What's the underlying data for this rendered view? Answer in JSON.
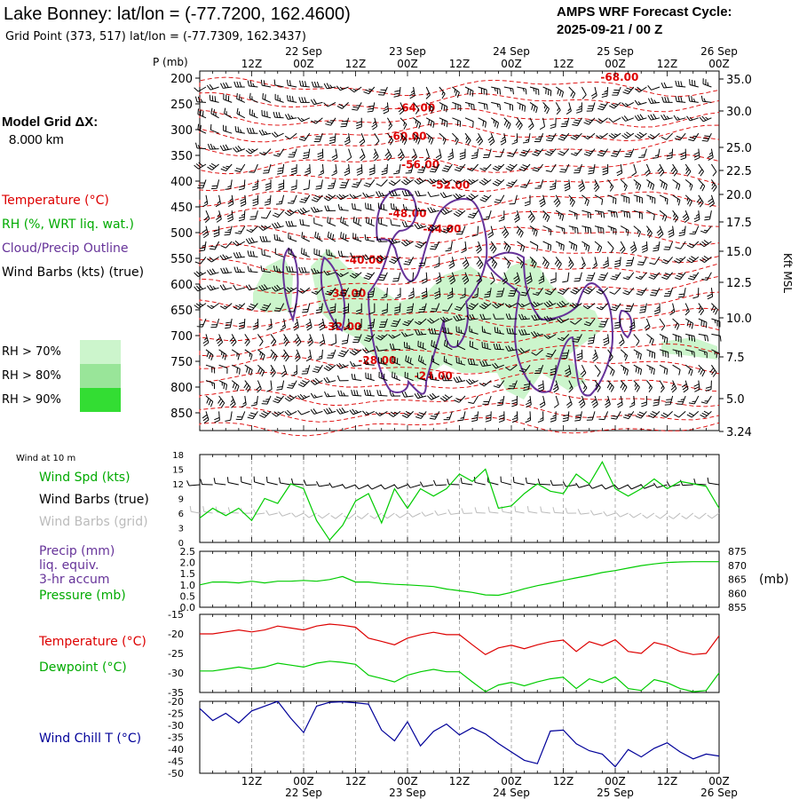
{
  "header": {
    "station_title": "Lake Bonney:  lat/lon = (-77.7200, 162.4600)",
    "grid_point": "Grid Point (373, 517) lat/lon = (-77.7309, 162.3437)",
    "cycle_line1": "AMPS WRF Forecast Cycle:",
    "cycle_line2": "2025-09-21 / 00  Z",
    "model_grid_line1": "Model Grid ΔX:",
    "model_grid_line2": "8.000 km"
  },
  "colors": {
    "temperature": "#dd0000",
    "rh_green": "#00aa00",
    "cloud_outline": "#663399",
    "wind_chill": "#000099",
    "rh70": "#ccf5cc",
    "rh80": "#99e599",
    "rh90": "#33dd33",
    "grid": "#999999"
  },
  "time_axis": {
    "hour_labels": [
      "12Z",
      "00Z",
      "12Z",
      "00Z",
      "12Z",
      "00Z",
      "12Z",
      "00Z",
      "12Z",
      "00Z"
    ],
    "date_labels": [
      "22 Sep",
      "23 Sep",
      "24 Sep",
      "25 Sep",
      "26 Sep"
    ]
  },
  "chart_data": [
    {
      "type": "contour",
      "name": "cross-section",
      "x_range_hours": [
        0,
        120
      ],
      "p_axis_label": "P (mb)",
      "p_ticks": [
        200,
        250,
        300,
        350,
        400,
        450,
        500,
        550,
        600,
        650,
        700,
        750,
        800,
        850
      ],
      "height_axis_label": "Kft MSL",
      "height_ticks": [
        "35.0",
        "30.0",
        "25.0",
        "22.5",
        "20.0",
        "17.5",
        "15.0",
        "12.5",
        "10.0",
        "7.5",
        "5.0",
        "3.24"
      ],
      "legend_labels": {
        "temperature": "Temperature (°C)",
        "rh": "RH (%, WRT liq. wat.)",
        "cloud": "Cloud/Precip Outline",
        "barbs": "Wind Barbs (kts) (true)"
      },
      "rh_legend": [
        "RH > 70%",
        "RH > 80%",
        "RH > 90%"
      ],
      "isotherm_labels": [
        {
          "label": "-68.00",
          "t": 97,
          "p": 205
        },
        {
          "label": "-64.00",
          "t": 50,
          "p": 265
        },
        {
          "label": "-60.00",
          "t": 48,
          "p": 320
        },
        {
          "label": "-56.00",
          "t": 51,
          "p": 375
        },
        {
          "label": "-52.00",
          "t": 58,
          "p": 415
        },
        {
          "label": "-48.00",
          "t": 48,
          "p": 470
        },
        {
          "label": "-44.00",
          "t": 56,
          "p": 500
        },
        {
          "label": "-40.00",
          "t": 38,
          "p": 560
        },
        {
          "label": "-36.00",
          "t": 34,
          "p": 625
        },
        {
          "label": "-32.00",
          "t": 33,
          "p": 690
        },
        {
          "label": "-28.00",
          "t": 41,
          "p": 755
        },
        {
          "label": "-24.00",
          "t": 54,
          "p": 785
        }
      ]
    },
    {
      "type": "line",
      "name": "wind-at-10m",
      "panel_title": "Wind at 10 m",
      "labels": [
        "Wind Spd (kts)",
        "Wind Barbs (true)",
        "Wind Barbs (grid)"
      ],
      "ylim": [
        0,
        18
      ],
      "y_ticks": [
        0,
        3,
        6,
        9,
        12,
        15,
        18
      ],
      "x_hours": [
        0,
        3,
        6,
        9,
        12,
        15,
        18,
        21,
        24,
        27,
        30,
        33,
        36,
        39,
        42,
        45,
        48,
        51,
        54,
        57,
        60,
        63,
        66,
        69,
        72,
        75,
        78,
        81,
        84,
        87,
        90,
        93,
        96,
        99,
        102,
        105,
        108,
        111,
        114,
        117,
        120
      ],
      "wind_speed": [
        5,
        7,
        5.5,
        7,
        4.5,
        9,
        8,
        12,
        11,
        4.5,
        0.5,
        3.5,
        8.5,
        10,
        4,
        11,
        7,
        11,
        9.5,
        11,
        14,
        12.5,
        15,
        7,
        7.5,
        10,
        12,
        10.5,
        10,
        14,
        12,
        16.5,
        11,
        9.5,
        11,
        13,
        11,
        12.5,
        12,
        11.5,
        7
      ]
    },
    {
      "type": "line",
      "name": "precip-pressure",
      "labels": [
        "Precip (mm)",
        "liq. equiv.",
        "3-hr accum",
        "Pressure (mb)"
      ],
      "left_ylim": [
        0,
        2.5
      ],
      "left_ticks": [
        "0.0",
        "0.5",
        "1.0",
        "1.5",
        "2.0",
        "2.5"
      ],
      "right_ylim": [
        855,
        875
      ],
      "right_ticks": [
        "855",
        "860",
        "865",
        "870",
        "875"
      ],
      "right_unit": "(mb)",
      "x_hours": [
        0,
        3,
        6,
        9,
        12,
        15,
        18,
        21,
        24,
        27,
        30,
        33,
        36,
        39,
        42,
        45,
        48,
        51,
        54,
        57,
        60,
        63,
        66,
        69,
        72,
        75,
        78,
        81,
        84,
        87,
        90,
        93,
        96,
        99,
        102,
        105,
        108,
        111,
        114,
        117,
        120
      ],
      "pressure": [
        863,
        864,
        864,
        863.7,
        864.3,
        863.7,
        864.3,
        864.3,
        864.6,
        864.3,
        864.9,
        866,
        864,
        864,
        863.5,
        863.2,
        863,
        862.7,
        862.4,
        861.5,
        860.9,
        860.3,
        859.4,
        859.3,
        860.3,
        861.6,
        862.7,
        863.6,
        864.6,
        865.5,
        866.4,
        867.4,
        868.1,
        869,
        869.9,
        870.5,
        871,
        871.2,
        871.3,
        871.3,
        871.3
      ]
    },
    {
      "type": "line",
      "name": "temperature-dewpoint",
      "labels": [
        "Temperature (°C)",
        "Dewpoint (°C)"
      ],
      "ylim": [
        -35,
        -15
      ],
      "y_ticks": [
        -35,
        -30,
        -25,
        -20,
        -15
      ],
      "x_hours": [
        0,
        3,
        6,
        9,
        12,
        15,
        18,
        21,
        24,
        27,
        30,
        33,
        36,
        39,
        42,
        45,
        48,
        51,
        54,
        57,
        60,
        63,
        66,
        69,
        72,
        75,
        78,
        81,
        84,
        87,
        90,
        93,
        96,
        99,
        102,
        105,
        108,
        111,
        114,
        117,
        120
      ],
      "temperature": [
        -20,
        -20,
        -19.5,
        -19,
        -19.5,
        -19,
        -18,
        -18.5,
        -19,
        -18,
        -17.5,
        -17.8,
        -18.3,
        -21.1,
        -21.9,
        -22.8,
        -21.1,
        -20.2,
        -19.6,
        -20.2,
        -20.2,
        -22.8,
        -25.3,
        -23.6,
        -22.9,
        -23.8,
        -22.8,
        -22,
        -21.6,
        -24.5,
        -22,
        -23,
        -21.5,
        -24.5,
        -25,
        -22.2,
        -23,
        -24.5,
        -25.3,
        -25,
        -20.5
      ]
    },
    {
      "type": "line",
      "name": "wind-chill",
      "labels": [
        "Wind Chill T (°C)"
      ],
      "ylim": [
        -50,
        -20
      ],
      "y_ticks": [
        -20,
        -25,
        -30,
        -35,
        -40,
        -45,
        -50
      ],
      "x_hours": [
        0,
        3,
        6,
        9,
        12,
        15,
        18,
        21,
        24,
        27,
        30,
        33,
        36,
        39,
        42,
        45,
        48,
        51,
        54,
        57,
        60,
        63,
        66,
        69,
        72,
        75,
        78,
        81,
        84,
        87,
        90,
        93,
        96,
        99,
        102,
        105,
        108,
        111,
        114,
        117,
        120
      ],
      "wind_chill": [
        -23,
        -28,
        -25,
        -29,
        -24,
        -22,
        -20,
        -27,
        -33,
        -22,
        -20.4,
        -20.2,
        -20.6,
        -21.2,
        -32,
        -36.5,
        -28.5,
        -38.6,
        -32.5,
        -29.5,
        -34,
        -31,
        -33.6,
        -37.6,
        -41.1,
        -44.6,
        -46,
        -32.4,
        -32,
        -37.7,
        -40.6,
        -42,
        -47.3,
        -40.1,
        -43.2,
        -39.6,
        -37.3,
        -41.1,
        -44,
        -42,
        -42.8
      ]
    }
  ]
}
